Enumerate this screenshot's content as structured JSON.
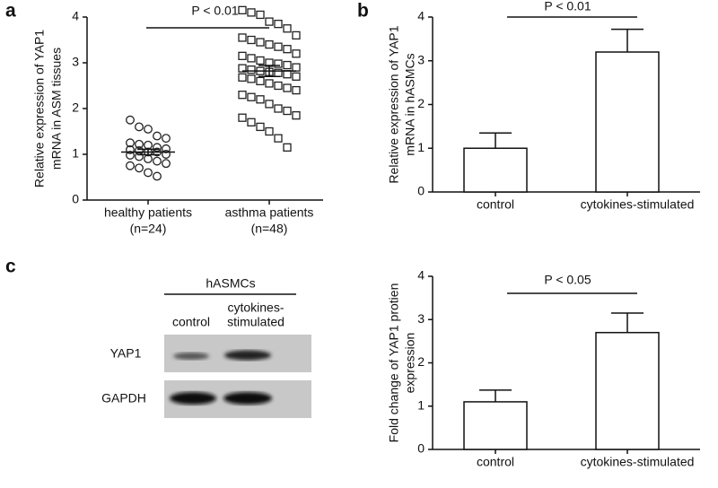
{
  "chart_data": [
    {
      "type": "strip",
      "panel": "a",
      "ylabel": [
        "Relative expression of YAP1",
        "mRNA in ASM tissues"
      ],
      "categories": [
        "healthy patients",
        "asthma patients"
      ],
      "category_notes": [
        "(n=24)",
        "(n=48)"
      ],
      "annotation": "P < 0.01",
      "series": [
        {
          "marker": "circle",
          "mean": 1.05,
          "sem": 0.06,
          "values": [
            1.75,
            1.6,
            1.55,
            1.4,
            1.35,
            1.25,
            1.22,
            1.2,
            1.15,
            1.12,
            1.1,
            1.08,
            1.05,
            1.05,
            1.0,
            0.98,
            0.95,
            0.9,
            0.85,
            0.8,
            0.75,
            0.7,
            0.6,
            0.52
          ]
        },
        {
          "marker": "square",
          "mean": 2.82,
          "sem": 0.12,
          "values": [
            4.15,
            4.1,
            4.05,
            3.9,
            3.85,
            3.75,
            3.6,
            3.55,
            3.5,
            3.45,
            3.4,
            3.35,
            3.3,
            3.2,
            3.15,
            3.1,
            3.05,
            3.0,
            2.98,
            2.95,
            2.9,
            2.88,
            2.85,
            2.82,
            2.8,
            2.78,
            2.75,
            2.7,
            2.68,
            2.65,
            2.6,
            2.55,
            2.5,
            2.45,
            2.4,
            2.3,
            2.25,
            2.2,
            2.1,
            2.0,
            1.95,
            1.85,
            1.8,
            1.7,
            1.6,
            1.5,
            1.35,
            1.15
          ]
        }
      ],
      "ylim": [
        0,
        4
      ],
      "yticks": [
        0,
        1,
        2,
        3,
        4
      ]
    },
    {
      "type": "bar",
      "panel": "b",
      "ylabel": [
        "Relative expression of YAP1",
        "mRNA in hASMCs"
      ],
      "categories": [
        "control",
        "cytokines-stimulated"
      ],
      "values": [
        1.0,
        3.2
      ],
      "errors": [
        0.35,
        0.52
      ],
      "color": "#ffffff",
      "annotation": "P < 0.01",
      "ylim": [
        0,
        4
      ],
      "yticks": [
        0,
        1,
        2,
        3,
        4
      ]
    },
    {
      "type": "bar",
      "ylabel": [
        "Fold change of YAP1 protien",
        "expression"
      ],
      "categories": [
        "control",
        "cytokines-stimulated"
      ],
      "values": [
        1.1,
        2.7
      ],
      "errors": [
        0.27,
        0.45
      ],
      "color": "#ffffff",
      "annotation": "P < 0.05",
      "ylim": [
        0,
        4
      ],
      "yticks": [
        0,
        1,
        2,
        3,
        4
      ]
    }
  ],
  "blot": {
    "panel": "c",
    "header": "hASMCs",
    "lanes": [
      [
        "control"
      ],
      [
        "cytokines-",
        "stimulated"
      ]
    ],
    "rows": [
      "YAP1",
      "GAPDH"
    ]
  }
}
